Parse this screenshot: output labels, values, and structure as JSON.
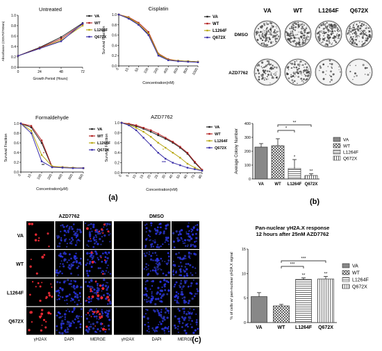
{
  "panels": {
    "a": "(a)",
    "b": "(b)",
    "c": "(c)"
  },
  "colors": {
    "VA": "#222222",
    "WT": "#b22222",
    "L1264F": "#b8a814",
    "Q672X": "#3b2fa8",
    "bar_fill": "#888888"
  },
  "chart_data": [
    {
      "id": "untreated",
      "type": "line",
      "title": "Untreated",
      "xlabel": "Growth Period (Hours)",
      "ylabel": "Absorbance (OD570/750nm)",
      "x": [
        0,
        24,
        48,
        72
      ],
      "xticks": [
        "0",
        "24",
        "48",
        "72"
      ],
      "yticks": [
        "0.0",
        "0.2",
        "0.4",
        "0.6",
        "0.8",
        "1.0"
      ],
      "xlim": [
        0,
        72
      ],
      "ylim": [
        0,
        1.0
      ],
      "series": [
        {
          "name": "VA",
          "values": [
            0.22,
            0.38,
            0.58,
            0.85
          ]
        },
        {
          "name": "WT",
          "values": [
            0.22,
            0.37,
            0.55,
            0.83
          ]
        },
        {
          "name": "L1264F",
          "values": [
            0.22,
            0.36,
            0.52,
            0.8
          ]
        },
        {
          "name": "Q672X",
          "values": [
            0.22,
            0.36,
            0.5,
            0.84
          ]
        }
      ]
    },
    {
      "id": "cisplatin",
      "type": "line",
      "title": "Cisplatin",
      "xlabel": "Concentration(nM)",
      "ylabel": "Survival Fraction",
      "xticks": [
        "0",
        "10",
        "50",
        "100",
        "200",
        "400",
        "600",
        "800",
        "1000"
      ],
      "yticks": [
        "0.0",
        "0.2",
        "0.4",
        "0.6",
        "0.8",
        "1.0"
      ],
      "ylim": [
        0,
        1.0
      ],
      "series": [
        {
          "name": "VA",
          "values": [
            1.0,
            0.93,
            0.8,
            0.62,
            0.22,
            0.12,
            0.1,
            0.09,
            0.08
          ]
        },
        {
          "name": "WT",
          "values": [
            1.0,
            0.95,
            0.84,
            0.66,
            0.24,
            0.13,
            0.1,
            0.09,
            0.08
          ]
        },
        {
          "name": "L1264F",
          "values": [
            1.0,
            0.94,
            0.82,
            0.63,
            0.23,
            0.12,
            0.1,
            0.09,
            0.08
          ]
        },
        {
          "name": "Q672X",
          "values": [
            1.0,
            0.92,
            0.8,
            0.6,
            0.2,
            0.11,
            0.09,
            0.08,
            0.07
          ]
        }
      ]
    },
    {
      "id": "formaldehyde",
      "type": "line",
      "title": "Formaldehyde",
      "xlabel": "Concentration(μM)",
      "ylabel": "Survival Fraction",
      "xticks": [
        "0",
        "10",
        "100",
        "200",
        "400",
        "600",
        "800"
      ],
      "yticks": [
        "0.0",
        "0.2",
        "0.4",
        "0.6",
        "0.8",
        "1.0"
      ],
      "ylim": [
        0,
        1.0
      ],
      "annotations": [
        "*",
        "**"
      ],
      "series": [
        {
          "name": "VA",
          "values": [
            1.0,
            0.92,
            0.6,
            0.1,
            0.1,
            0.09,
            0.08
          ]
        },
        {
          "name": "WT",
          "values": [
            1.0,
            0.95,
            0.65,
            0.11,
            0.1,
            0.09,
            0.08
          ]
        },
        {
          "name": "L1264F",
          "values": [
            1.0,
            0.85,
            0.35,
            0.12,
            0.1,
            0.09,
            0.08
          ]
        },
        {
          "name": "Q672X",
          "values": [
            1.0,
            0.8,
            0.22,
            0.1,
            0.09,
            0.08,
            0.08
          ]
        }
      ]
    },
    {
      "id": "azd7762-survival",
      "type": "line",
      "title": "AZD7762",
      "xlabel": "Concentration(nM)",
      "ylabel": "Survival Fraction",
      "xticks": [
        "0",
        "5",
        "10",
        "15",
        "20",
        "25",
        "30",
        "40",
        "50",
        "60",
        "70",
        "80"
      ],
      "yticks": [
        "0.0",
        "0.2",
        "0.4",
        "0.6",
        "0.8",
        "1.0"
      ],
      "ylim": [
        0,
        1.0
      ],
      "annotations": [
        "*",
        "***"
      ],
      "series": [
        {
          "name": "VA",
          "values": [
            1.0,
            0.97,
            0.93,
            0.88,
            0.82,
            0.75,
            0.68,
            0.6,
            0.5,
            0.38,
            0.2,
            0.05
          ]
        },
        {
          "name": "WT",
          "values": [
            1.0,
            0.98,
            0.95,
            0.9,
            0.85,
            0.78,
            0.7,
            0.62,
            0.52,
            0.4,
            0.22,
            0.06
          ]
        },
        {
          "name": "L1264F",
          "values": [
            1.0,
            0.96,
            0.9,
            0.82,
            0.72,
            0.6,
            0.5,
            0.4,
            0.3,
            0.18,
            0.1,
            0.04
          ]
        },
        {
          "name": "Q672X",
          "values": [
            1.0,
            0.95,
            0.85,
            0.7,
            0.55,
            0.4,
            0.28,
            0.2,
            0.15,
            0.1,
            0.07,
            0.04
          ]
        }
      ]
    },
    {
      "id": "colony",
      "type": "bar",
      "ylabel": "Average Colony Number",
      "categories": [
        "VA",
        "WT",
        "L1264F",
        "Q672X"
      ],
      "values": [
        230,
        240,
        75,
        25
      ],
      "errors": [
        25,
        50,
        65,
        12
      ],
      "yticks": [
        "0",
        "100",
        "200",
        "300",
        "400"
      ],
      "ylim": [
        0,
        400
      ],
      "significance": [
        "*",
        "**"
      ],
      "bar_marks": [
        "",
        "",
        "*",
        "**"
      ],
      "legend": [
        "VA",
        "WT",
        "L1264F",
        "Q672X"
      ],
      "plates": {
        "columns": [
          "VA",
          "WT",
          "L1264F",
          "Q672X"
        ],
        "rows": [
          "DMSO",
          "AZD7762"
        ],
        "density": [
          [
            0.62,
            0.65,
            0.6,
            0.58
          ],
          [
            0.35,
            0.4,
            0.12,
            0.06
          ]
        ]
      }
    },
    {
      "id": "h2ax",
      "type": "bar",
      "title": "Pan-nuclear γH2A.X response",
      "subtitle": "12 hours after 25nM AZD7762",
      "ylabel": "% of cells w/ pan-nuclear γH2A.X signal",
      "categories": [
        "VA",
        "WT",
        "L1264F",
        "Q672X"
      ],
      "values": [
        5.3,
        3.4,
        8.8,
        8.9
      ],
      "errors": [
        0.8,
        0.3,
        0.3,
        0.5
      ],
      "yticks": [
        "0",
        "5",
        "10",
        "15"
      ],
      "ylim": [
        0,
        15
      ],
      "significance": [
        "***",
        "***"
      ],
      "bar_marks": [
        "",
        "",
        "**",
        "**"
      ],
      "legend": [
        "VA",
        "WT",
        "L1264F",
        "Q672X"
      ]
    }
  ],
  "micrographs": {
    "groups": [
      "AZD7762",
      "DMSO"
    ],
    "rows": [
      "VA",
      "WT",
      "L1264F",
      "Q672X"
    ],
    "channels": [
      "γH2AX",
      "DAPI",
      "MERGE"
    ]
  }
}
